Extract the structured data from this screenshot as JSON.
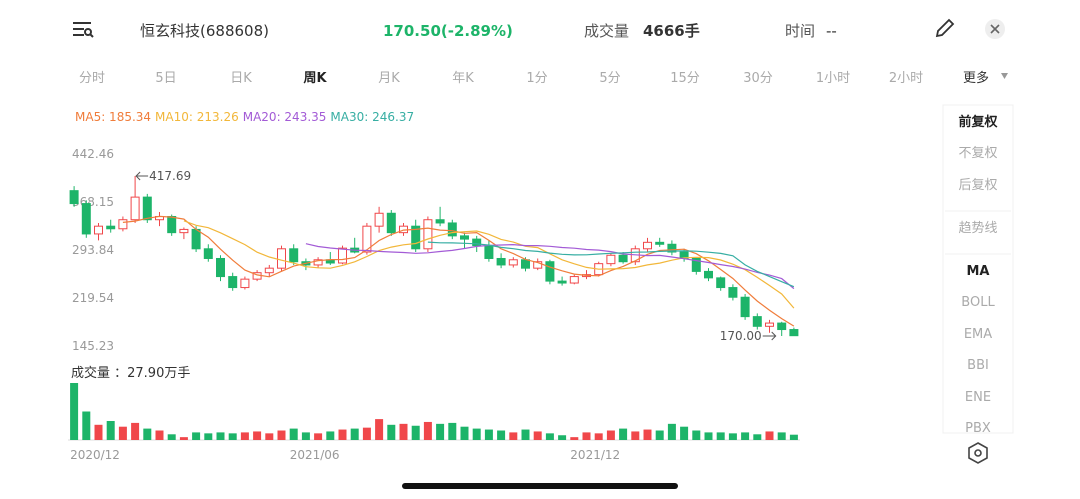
{
  "header": {
    "name": "恒玄科技(688608)",
    "price": "170.50(-2.89%)",
    "volume_label": "成交量",
    "volume": "4666手",
    "time_label": "时间",
    "time": "--"
  },
  "tabs": [
    "分时",
    "5日",
    "日K",
    "周K",
    "月K",
    "年K",
    "1分",
    "5分",
    "15分",
    "30分",
    "1小时",
    "2小时",
    "更多"
  ],
  "side_menu": [
    "前复权",
    "不复权",
    "后复权",
    "趋势线",
    "MA",
    "BOLL",
    "EMA",
    "BBI",
    "ENE",
    "PBX"
  ],
  "chart_data": {
    "type": "candlestick",
    "categories": [
      "2020/12",
      null,
      null,
      null,
      null,
      null,
      null,
      null,
      null,
      null,
      null,
      null,
      null,
      null,
      null,
      null,
      null,
      null,
      "2021/06",
      null,
      null,
      null,
      null,
      null,
      null,
      null,
      null,
      null,
      null,
      null,
      null,
      null,
      null,
      null,
      null,
      null,
      null,
      null,
      null,
      null,
      null,
      "2021/12",
      null,
      null,
      null,
      null,
      null,
      null,
      null,
      null,
      null,
      null,
      null,
      null,
      null,
      null,
      null,
      null,
      null,
      null
    ],
    "open": [
      395,
      375,
      328,
      340,
      336,
      350,
      385,
      350,
      355,
      330,
      335,
      305,
      290,
      262,
      245,
      258,
      268,
      275,
      305,
      285,
      280,
      288,
      283,
      306,
      300,
      340,
      360,
      330,
      340,
      305,
      350,
      345,
      325,
      320,
      310,
      290,
      280,
      288,
      275,
      285,
      255,
      252,
      262,
      265,
      282,
      295,
      285,
      305,
      315,
      312,
      300,
      290,
      270,
      260,
      245,
      230,
      200,
      185,
      190,
      180
    ],
    "high": [
      402,
      380,
      345,
      350,
      355,
      417.69,
      390,
      362,
      358,
      338,
      340,
      312,
      295,
      268,
      262,
      272,
      280,
      310,
      312,
      290,
      292,
      300,
      310,
      322,
      345,
      370,
      365,
      345,
      350,
      355,
      370,
      350,
      330,
      325,
      318,
      298,
      292,
      292,
      290,
      288,
      262,
      265,
      272,
      285,
      298,
      300,
      310,
      322,
      322,
      318,
      305,
      292,
      275,
      262,
      250,
      235,
      205,
      195,
      192,
      183
    ],
    "low": [
      370,
      322,
      318,
      330,
      332,
      345,
      345,
      340,
      325,
      320,
      300,
      285,
      255,
      240,
      242,
      255,
      262,
      270,
      280,
      272,
      276,
      280,
      281,
      298,
      296,
      330,
      325,
      325,
      300,
      300,
      340,
      320,
      305,
      300,
      285,
      275,
      276,
      270,
      272,
      250,
      248,
      250,
      258,
      262,
      278,
      282,
      280,
      300,
      308,
      295,
      285,
      265,
      255,
      240,
      225,
      195,
      180,
      175,
      170,
      170
    ],
    "close": [
      375,
      328,
      340,
      336,
      350,
      385,
      350,
      355,
      330,
      335,
      305,
      290,
      262,
      245,
      258,
      268,
      275,
      305,
      285,
      280,
      288,
      283,
      306,
      300,
      340,
      360,
      330,
      340,
      305,
      350,
      345,
      325,
      320,
      310,
      290,
      280,
      288,
      275,
      285,
      255,
      252,
      262,
      265,
      282,
      295,
      285,
      305,
      315,
      312,
      300,
      290,
      270,
      260,
      245,
      230,
      200,
      185,
      190,
      180,
      170.5
    ],
    "volume": [
      300,
      150,
      80,
      100,
      70,
      90,
      60,
      50,
      30,
      15,
      40,
      35,
      40,
      35,
      40,
      45,
      35,
      50,
      60,
      40,
      35,
      45,
      55,
      60,
      65,
      110,
      80,
      85,
      75,
      95,
      85,
      90,
      70,
      60,
      55,
      50,
      40,
      55,
      45,
      35,
      25,
      15,
      40,
      35,
      50,
      60,
      45,
      55,
      50,
      85,
      70,
      50,
      40,
      40,
      35,
      40,
      30,
      45,
      40,
      27.9
    ],
    "volume_label": "成交量 ：27.90万手",
    "extreme_labels": {
      "high": "417.69",
      "low": "170.00"
    },
    "up_color": "#f0474a",
    "down_color": "#1db469",
    "ylim": [
      145.23,
      442.46
    ],
    "yticks": [
      145.23,
      219.54,
      293.84,
      368.15,
      442.46
    ],
    "series": [
      {
        "name": "MA5",
        "label": "MA5: 185.34",
        "color": "#f07d3b",
        "values": [
          null,
          null,
          null,
          null,
          345.8,
          347.8,
          352.2,
          355.2,
          354,
          351,
          335,
          323,
          304.4,
          287.4,
          272,
          264.6,
          261.6,
          270.2,
          278.2,
          282.6,
          286.6,
          288.2,
          288.4,
          291.4,
          303.4,
          317.8,
          327.2,
          334,
          335,
          337,
          334,
          333,
          329,
          330,
          318,
          305,
          297.6,
          288.6,
          283.6,
          276.6,
          271,
          265.8,
          263.8,
          263.2,
          271.2,
          277.8,
          286.4,
          296.4,
          302.4,
          303.4,
          304.4,
          297.4,
          286.4,
          273,
          259,
          241,
          224,
          210,
          197,
          185.34
        ]
      },
      {
        "name": "MA10",
        "label": "MA10: 213.26",
        "color": "#f2b73a",
        "values": [
          null,
          null,
          null,
          null,
          null,
          null,
          null,
          null,
          null,
          348.4,
          341.4,
          337.6,
          329.8,
          320.7,
          311.5,
          299.8,
          292.3,
          287.3,
          282.8,
          277.3,
          275.6,
          274.9,
          279.3,
          284.8,
          293,
          302.2,
          307.7,
          311.2,
          313.2,
          320.2,
          325.9,
          330.1,
          331.5,
          332.5,
          327.5,
          319.5,
          315.3,
          308.8,
          306.8,
          297.3,
          288,
          281.7,
          276.2,
          273.4,
          273.9,
          274.4,
          276.1,
          280.1,
          282.8,
          287.3,
          291.1,
          291.9,
          291.4,
          287.7,
          281.2,
          272.7,
          260.7,
          248.2,
          235,
          213.26
        ]
      },
      {
        "name": "MA20",
        "label": "MA20: 243.35",
        "color": "#a35bd6",
        "values": [
          null,
          null,
          null,
          null,
          null,
          null,
          null,
          null,
          null,
          null,
          null,
          null,
          null,
          null,
          null,
          null,
          null,
          null,
          null,
          312.9,
          308.5,
          306.3,
          304.6,
          302.8,
          302.3,
          301,
          300,
          299.3,
          298,
          298.8,
          300.8,
          302.5,
          305.4,
          308.7,
          310.3,
          310.9,
          311.5,
          310,
          310,
          308.8,
          307,
          305.9,
          303.9,
          303,
          300.7,
          297,
          295.7,
          294.5,
          294.8,
          292.3,
          289.6,
          286.8,
          283.8,
          280.6,
          277.6,
          273.6,
          268.4,
          264.2,
          258.9,
          243.35
        ]
      },
      {
        "name": "MA30",
        "label": "MA30: 246.37",
        "color": "#37aea3",
        "values": [
          null,
          null,
          null,
          null,
          null,
          null,
          null,
          null,
          null,
          null,
          null,
          null,
          null,
          null,
          null,
          null,
          null,
          null,
          null,
          null,
          null,
          null,
          null,
          null,
          null,
          null,
          null,
          null,
          null,
          315.3,
          314.3,
          314.2,
          313.5,
          312.7,
          310.7,
          307.2,
          305.1,
          302.4,
          300.9,
          298.3,
          296.5,
          295.6,
          295.7,
          296.9,
          298.1,
          298.7,
          299.7,
          300.1,
          300.9,
          301.6,
          301.7,
          301.2,
          299.7,
          297.9,
          294.2,
          280,
          270,
          262,
          254,
          246.37
        ]
      }
    ]
  }
}
